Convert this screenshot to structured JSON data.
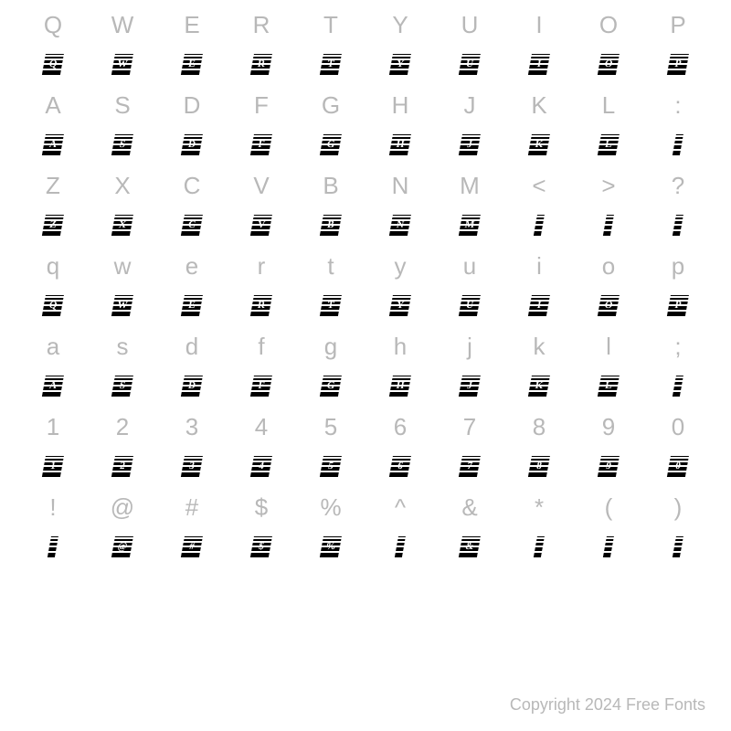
{
  "rows": [
    {
      "refs": [
        "Q",
        "W",
        "E",
        "R",
        "T",
        "Y",
        "U",
        "I",
        "O",
        "P"
      ],
      "glyphLetters": [
        "Q",
        "W",
        "E",
        "R",
        "T",
        "Y",
        "U",
        "I",
        "O",
        "P"
      ],
      "narrow": [
        false,
        false,
        false,
        false,
        false,
        false,
        false,
        false,
        false,
        false
      ]
    },
    {
      "refs": [
        "A",
        "S",
        "D",
        "F",
        "G",
        "H",
        "J",
        "K",
        "L",
        ":"
      ],
      "glyphLetters": [
        "A",
        "S",
        "D",
        "F",
        "G",
        "H",
        "J",
        "K",
        "L",
        ""
      ],
      "narrow": [
        false,
        false,
        false,
        false,
        false,
        false,
        false,
        false,
        false,
        true
      ]
    },
    {
      "refs": [
        "Z",
        "X",
        "C",
        "V",
        "B",
        "N",
        "M",
        "<",
        ">",
        "?"
      ],
      "glyphLetters": [
        "Z",
        "X",
        "C",
        "V",
        "B",
        "N",
        "M",
        "",
        "",
        ""
      ],
      "narrow": [
        false,
        false,
        false,
        false,
        false,
        false,
        false,
        true,
        true,
        true
      ]
    },
    {
      "refs": [
        "q",
        "w",
        "e",
        "r",
        "t",
        "y",
        "u",
        "i",
        "o",
        "p"
      ],
      "glyphLetters": [
        "Q",
        "W",
        "E",
        "R",
        "T",
        "Y",
        "U",
        "I",
        "O",
        "P"
      ],
      "narrow": [
        false,
        false,
        false,
        false,
        false,
        false,
        false,
        false,
        false,
        false
      ]
    },
    {
      "refs": [
        "a",
        "s",
        "d",
        "f",
        "g",
        "h",
        "j",
        "k",
        "l",
        ";"
      ],
      "glyphLetters": [
        "A",
        "S",
        "D",
        "F",
        "G",
        "H",
        "J",
        "K",
        "L",
        ""
      ],
      "narrow": [
        false,
        false,
        false,
        false,
        false,
        false,
        false,
        false,
        false,
        true
      ]
    },
    {
      "refs": [
        "1",
        "2",
        "3",
        "4",
        "5",
        "6",
        "7",
        "8",
        "9",
        "0"
      ],
      "glyphLetters": [
        "1",
        "2",
        "3",
        "4",
        "5",
        "6",
        "7",
        "8",
        "9",
        "0"
      ],
      "narrow": [
        false,
        false,
        false,
        false,
        false,
        false,
        false,
        false,
        false,
        false
      ]
    },
    {
      "refs": [
        "!",
        "@",
        "#",
        "$",
        "%",
        "^",
        "&",
        "*",
        "(",
        ")"
      ],
      "glyphLetters": [
        "",
        "@",
        "#",
        "$",
        "%",
        "",
        "&",
        "",
        "",
        ""
      ],
      "narrow": [
        true,
        false,
        false,
        false,
        false,
        true,
        false,
        true,
        true,
        true
      ]
    }
  ],
  "copyright": "Copyright 2024 Free Fonts",
  "colors": {
    "background": "#ffffff",
    "refText": "#b8b8b8",
    "glyphFill": "#000000",
    "glyphLetter": "#ffffff",
    "copyright": "#b8b8b8"
  },
  "typography": {
    "refFontSize": 26,
    "copyrightFontSize": 18,
    "glyphLetterFontSize": 11,
    "glyphLetterFontFamily": "Times New Roman"
  },
  "layout": {
    "columns": 10,
    "glyphSkewDeg": -10,
    "glyphWidth": 20,
    "glyphWidthNarrow": 8,
    "glyphHeight": 24
  }
}
